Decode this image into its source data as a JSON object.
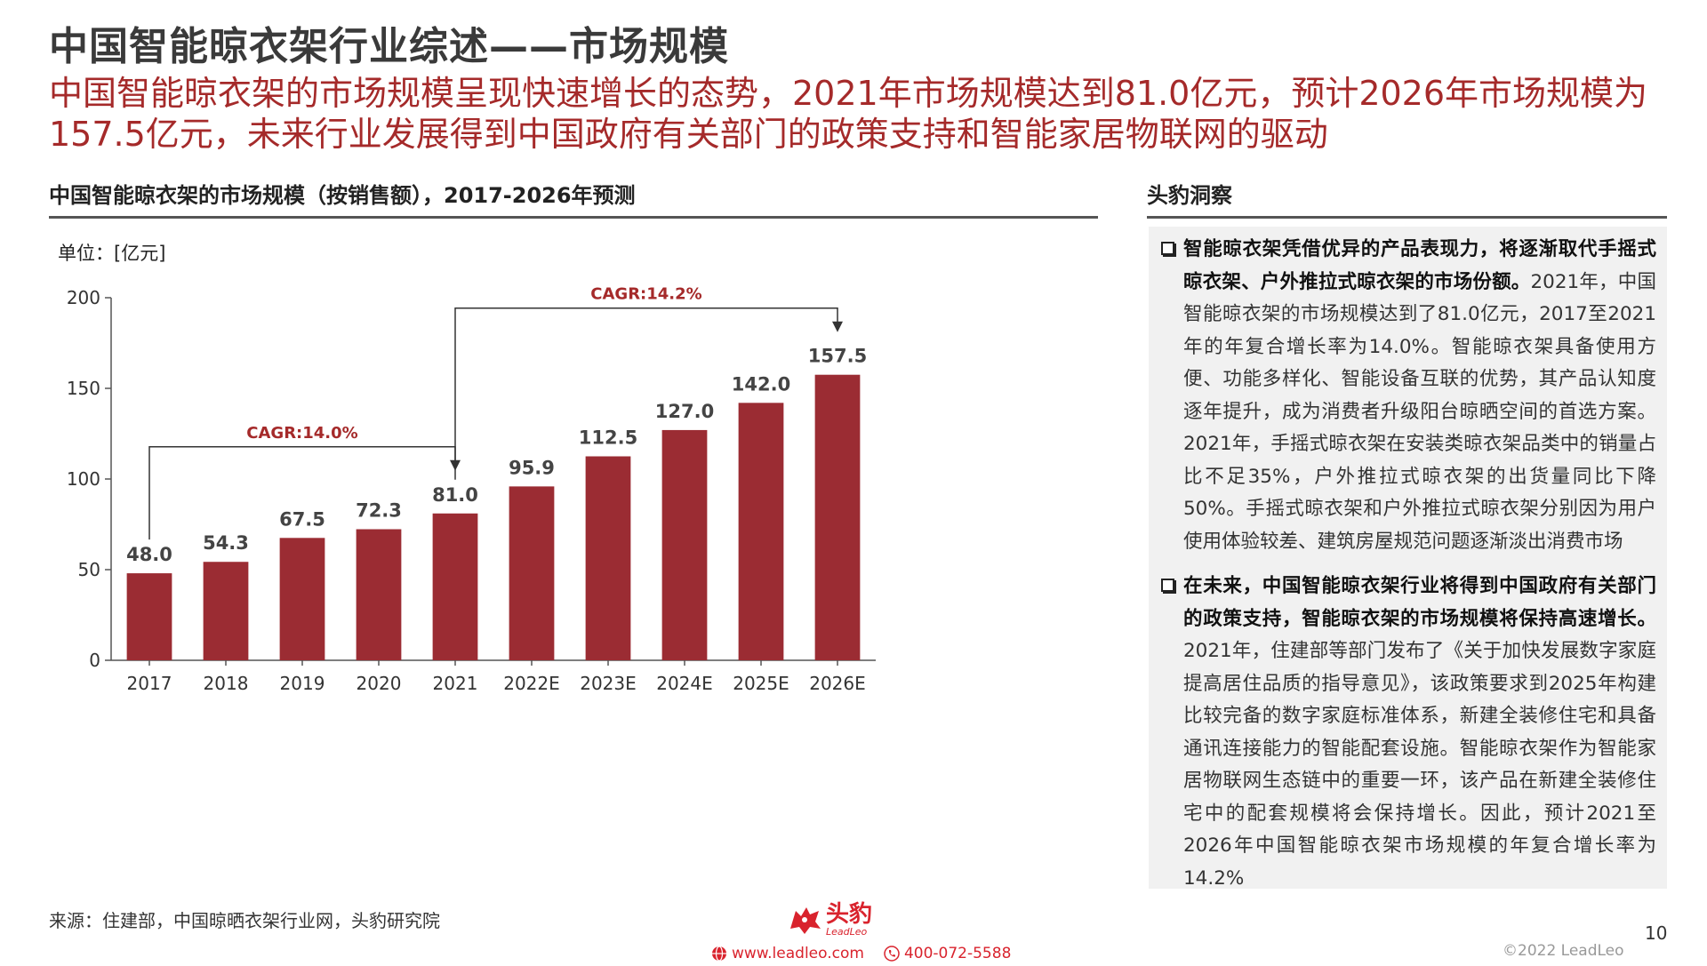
{
  "header": {
    "title": "中国智能晾衣架行业综述——市场规模",
    "subtitle": "中国智能晾衣架的市场规模呈现快速增长的态势，2021年市场规模达到81.0亿元，预计2026年市场规模为157.5亿元，未来行业发展得到中国政府有关部门的政策支持和智能家居物联网的驱动"
  },
  "chart_section": {
    "title": "中国智能晾衣架的市场规模（按销售额），2017-2026年预测",
    "unit": "单位：[亿元]"
  },
  "chart_data": {
    "type": "bar",
    "title": "中国智能晾衣架的市场规模（按销售额），2017-2026年预测",
    "ylabel": "单位：[亿元]",
    "categories": [
      "2017",
      "2018",
      "2019",
      "2020",
      "2021",
      "2022E",
      "2023E",
      "2024E",
      "2025E",
      "2026E"
    ],
    "values": [
      48.0,
      54.3,
      67.5,
      72.3,
      81.0,
      95.9,
      112.5,
      127.0,
      142.0,
      157.5
    ],
    "data_labels": [
      "48.0",
      "54.3",
      "67.5",
      "72.3",
      "81.0",
      "95.9",
      "112.5",
      "127.0",
      "142.0",
      "157.5"
    ],
    "ylim": [
      0,
      200
    ],
    "yticks": [
      0,
      50,
      100,
      150,
      200
    ],
    "bar_color": "#9b2c33",
    "grid": false,
    "annotations": [
      {
        "text": "CAGR:14.0%",
        "from": "2017",
        "to": "2021"
      },
      {
        "text": "CAGR:14.2%",
        "from": "2021",
        "to": "2026E"
      }
    ]
  },
  "insights": {
    "title": "头豹洞察",
    "items": [
      {
        "bold": "智能晾衣架凭借优异的产品表现力，将逐渐取代手摇式晾衣架、户外推拉式晾衣架的市场份额。",
        "text": "2021年，中国智能晾衣架的市场规模达到了81.0亿元，2017至2021年的年复合增长率为14.0%。智能晾衣架具备使用方便、功能多样化、智能设备互联的优势，其产品认知度逐年提升，成为消费者升级阳台晾晒空间的首选方案。2021年，手摇式晾衣架在安装类晾衣架品类中的销量占比不足35%，户外推拉式晾衣架的出货量同比下降50%。手摇式晾衣架和户外推拉式晾衣架分别因为用户使用体验较差、建筑房屋规范问题逐渐淡出消费市场"
      },
      {
        "bold": "在未来，中国智能晾衣架行业将得到中国政府有关部门的政策支持，智能晾衣架的市场规模将保持高速增长。",
        "text": "2021年，住建部等部门发布了《关于加快发展数字家庭 提高居住品质的指导意见》，该政策要求到2025年构建比较完备的数字家庭标准体系，新建全装修住宅和具备通讯连接能力的智能配套设施。智能晾衣架作为智能家居物联网生态链中的重要一环，该产品在新建全装修住宅中的配套规模将会保持增长。因此，预计2021至2026年中国智能晾衣架市场规模的年复合增长率为14.2%"
      }
    ]
  },
  "footer": {
    "source": "来源：住建部，中国晾晒衣架行业网，头豹研究院",
    "logo_cn": "头豹",
    "logo_en": "LeadLeo",
    "website": "www.leadleo.com",
    "phone": "400-072-5588",
    "page_number": "10",
    "copyright": "©2022 LeadLeo"
  },
  "colors": {
    "accent_red": "#a52a2a",
    "brand_red": "#d9232d",
    "bar": "#9b2c33",
    "panel_bg": "#f1f1f1"
  }
}
